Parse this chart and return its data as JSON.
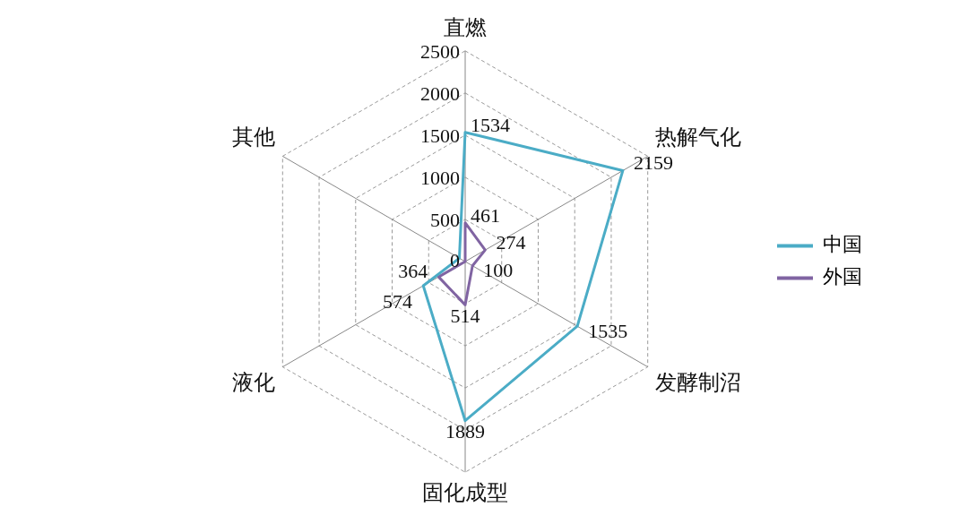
{
  "chart_data": {
    "type": "radar",
    "categories": [
      "直燃",
      "热解气化",
      "发酵制沼",
      "固化成型",
      "液化",
      "其他"
    ],
    "series": [
      {
        "name": "中国",
        "color": "#4bacc6",
        "values": [
          1534,
          2159,
          1535,
          1889,
          574,
          80
        ],
        "value_labels": [
          "1534",
          "2159",
          "1535",
          "1889",
          "574",
          null
        ]
      },
      {
        "name": "外国",
        "color": "#8064a2",
        "values": [
          461,
          274,
          100,
          514,
          364,
          0
        ],
        "value_labels": [
          "461",
          "274",
          "100",
          "514",
          "364",
          null
        ]
      }
    ],
    "ylim": [
      0,
      2500
    ],
    "yticks": [
      0,
      500,
      1000,
      1500,
      2000,
      2500
    ],
    "grid": true,
    "legend": "right",
    "marker": "none",
    "line_style": "solid"
  }
}
